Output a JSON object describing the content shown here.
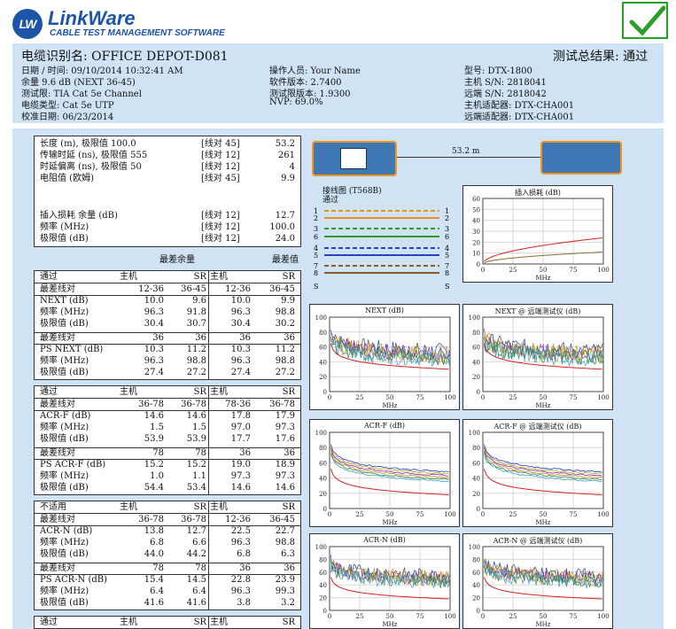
{
  "logo": {
    "mark": "LW",
    "name": "LinkWare",
    "subtitle": "CABLE TEST MANAGEMENT SOFTWARE"
  },
  "header": {
    "cable_id": "电缆识别名: OFFICE  DEPOT-D081",
    "overall_result": "测试总结果: 通过",
    "date": "日期 / 时间: 09/10/2014  10:32:41 AM",
    "margin": "余量 9.6 dB (NEXT 36-45)",
    "limit": "测试限: TIA Cat 5e Channel",
    "cable_type": "电缆类型: Cat 5e UTP",
    "cal_date": "校准日期:  06/23/2014",
    "operator": "操作人员: Your Name",
    "sw_version": "软件版本: 2.7400",
    "limit_version": "测试限版本: 1.9300",
    "nvp": "NVP: 69.0%",
    "model": "型号: DTX-1800",
    "main_sn": "主机 S/N: 2818041",
    "remote_sn": "远端 S/N: 2818042",
    "main_adapter": "主机适配器: DTX-CHA001",
    "remote_adapter": "远端适配器: DTX-CHA001"
  },
  "summary": {
    "rows": [
      {
        "label": "长度 (m), 极限值 100.0",
        "pair": "[线对 45]",
        "value": "53.2"
      },
      {
        "label": "传输时延 (ns), 极限值 555",
        "pair": "[线对 12]",
        "value": "261"
      },
      {
        "label": "时延偏离 (ns), 极限值 50",
        "pair": "[线对 12]",
        "value": "4"
      },
      {
        "label": "电阻值 (欧姆)",
        "pair": "[线对 45]",
        "value": "9.9"
      }
    ],
    "il_rows": [
      {
        "label": "插入损耗 余量 (dB)",
        "pair": "[线对 12]",
        "value": "12.7"
      },
      {
        "label": "频率 (MHz)",
        "pair": "[线对 12]",
        "value": "100.0"
      },
      {
        "label": "极限值 (dB)",
        "pair": "[线对 12]",
        "value": "24.0"
      }
    ],
    "worst_margin": "最差余量",
    "worst_value": "最差值"
  },
  "tables": [
    {
      "status": "通过",
      "cols": [
        "主机",
        "SR",
        "主机",
        "SR"
      ],
      "groups": [
        {
          "rows": [
            [
              "最差线对",
              "12-36",
              "36-45",
              "12-36",
              "36-45"
            ],
            [
              "NEXT (dB)",
              "10.0",
              "9.6",
              "10.0",
              "9.9"
            ],
            [
              "频率 (MHz)",
              "96.3",
              "91.8",
              "96.3",
              "98.8"
            ],
            [
              "极限值 (dB)",
              "30.4",
              "30.7",
              "30.4",
              "30.2"
            ]
          ]
        },
        {
          "rows": [
            [
              "最差线对",
              "36",
              "36",
              "36",
              "36"
            ],
            [
              "PS NEXT (dB)",
              "10.3",
              "11.2",
              "10.3",
              "11.2"
            ],
            [
              "频率 (MHz)",
              "96.3",
              "98.8",
              "96.3",
              "98.8"
            ],
            [
              "极限值 (dB)",
              "27.4",
              "27.2",
              "27.4",
              "27.2"
            ]
          ]
        }
      ]
    },
    {
      "status": "通过",
      "cols": [
        "主机",
        "SR",
        "主机",
        "SR"
      ],
      "groups": [
        {
          "rows": [
            [
              "最差线对",
              "36-78",
              "36-78",
              "78-36",
              "36-78"
            ],
            [
              "ACR-F (dB)",
              "14.6",
              "14.6",
              "17.8",
              "17.9"
            ],
            [
              "频率 (MHz)",
              "1.5",
              "1.5",
              "97.0",
              "97.3"
            ],
            [
              "极限值 (dB)",
              "53.9",
              "53.9",
              "17.7",
              "17.6"
            ]
          ]
        },
        {
          "rows": [
            [
              "最差线对",
              "78",
              "78",
              "36",
              "36"
            ],
            [
              "PS ACR-F (dB)",
              "15.2",
              "15.2",
              "19.0",
              "18.9"
            ],
            [
              "频率 (MHz)",
              "1.0",
              "1.1",
              "97.3",
              "97.3"
            ],
            [
              "极限值 (dB)",
              "54.4",
              "53.4",
              "14.6",
              "14.6"
            ]
          ]
        }
      ]
    },
    {
      "status": "不适用",
      "cols": [
        "主机",
        "SR",
        "主机",
        "SR"
      ],
      "groups": [
        {
          "rows": [
            [
              "最差线对",
              "36-78",
              "36-78",
              "12-36",
              "36-45"
            ],
            [
              "ACR-N (dB)",
              "13.8",
              "12.7",
              "22.5",
              "22.7"
            ],
            [
              "频率 (MHz)",
              "6.8",
              "6.6",
              "96.3",
              "98.8"
            ],
            [
              "极限值 (dB)",
              "44.0",
              "44.2",
              "6.8",
              "6.3"
            ]
          ]
        },
        {
          "rows": [
            [
              "最差线对",
              "78",
              "78",
              "36",
              "36"
            ],
            [
              "PS ACR-N (dB)",
              "15.4",
              "14.5",
              "22.8",
              "23.9"
            ],
            [
              "频率 (MHz)",
              "6.4",
              "6.4",
              "96.3",
              "99.3"
            ],
            [
              "极限值 (dB)",
              "41.6",
              "41.6",
              "3.8",
              "3.2"
            ]
          ]
        }
      ]
    },
    {
      "status": "通过",
      "cols": [
        "主机",
        "SR",
        "主机",
        "SR"
      ],
      "groups": []
    }
  ],
  "diagram": {
    "length_label": "53.2 m"
  },
  "wiremap": {
    "title": "接线图 (T568B)",
    "status": "通过",
    "pins": [
      "1",
      "2",
      "3",
      "6",
      "4",
      "5",
      "7",
      "8",
      "S"
    ],
    "colors": [
      "#f08c1e",
      "#f08c1e",
      "#2e9a2e",
      "#2e9a2e",
      "#2541c9",
      "#2541c9",
      "#8b5a2b",
      "#8b5a2b",
      "#777777"
    ]
  },
  "colors": {
    "panel_bg": "#cfe3f5",
    "brand": "#1b55a6",
    "pass_check": "#2aa02a"
  },
  "chart_data": [
    {
      "id": "il",
      "type": "line",
      "title": "插入损耗 (dB)",
      "xlabel": "MHz",
      "xlim": [
        0,
        100
      ],
      "ylim": [
        0,
        60
      ],
      "yticks": [
        0,
        10,
        20,
        30,
        40,
        50,
        60
      ],
      "xticks": [
        0,
        25,
        50,
        75,
        100
      ],
      "curves": [
        {
          "kind": "il",
          "color": "#d62020"
        },
        {
          "kind": "meas",
          "color": "#8a6a2a"
        }
      ]
    },
    {
      "id": "next",
      "type": "line",
      "title": "NEXT (dB)",
      "xlabel": "MHz",
      "xlim": [
        0,
        100
      ],
      "ylim": [
        0,
        100
      ],
      "yticks": [
        0,
        20,
        40,
        60,
        80,
        100
      ],
      "xticks": [
        0,
        25,
        50,
        75,
        100
      ],
      "curves": [
        {
          "kind": "noise"
        },
        {
          "kind": "limit",
          "color": "#d62020"
        }
      ]
    },
    {
      "id": "next_sr",
      "type": "line",
      "title": "NEXT @ 远端测试仪 (dB)",
      "xlabel": "MHz",
      "xlim": [
        0,
        100
      ],
      "ylim": [
        0,
        100
      ],
      "yticks": [
        0,
        20,
        40,
        60,
        80,
        100
      ],
      "xticks": [
        0,
        25,
        50,
        75,
        100
      ],
      "curves": [
        {
          "kind": "noise"
        },
        {
          "kind": "limit",
          "color": "#d62020"
        }
      ]
    },
    {
      "id": "acrf",
      "type": "line",
      "title": "ACR-F (dB)",
      "xlabel": "MHz",
      "xlim": [
        0,
        100
      ],
      "ylim": [
        0,
        100
      ],
      "yticks": [
        0,
        20,
        40,
        60,
        80,
        100
      ],
      "xticks": [
        0,
        25,
        50,
        75,
        100
      ],
      "curves": [
        {
          "kind": "smooth"
        },
        {
          "kind": "limit",
          "color": "#d62020"
        }
      ]
    },
    {
      "id": "acrf_sr",
      "type": "line",
      "title": "ACR-F @ 远端测试仪 (dB)",
      "xlabel": "MHz",
      "xlim": [
        0,
        100
      ],
      "ylim": [
        0,
        100
      ],
      "yticks": [
        0,
        20,
        40,
        60,
        80,
        100
      ],
      "xticks": [
        0,
        25,
        50,
        75,
        100
      ],
      "curves": [
        {
          "kind": "smooth"
        },
        {
          "kind": "limit",
          "color": "#d62020"
        }
      ]
    },
    {
      "id": "acrn",
      "type": "line",
      "title": "ACR-N (dB)",
      "xlabel": "MHz",
      "xlim": [
        0,
        100
      ],
      "ylim": [
        0,
        100
      ],
      "yticks": [
        0,
        20,
        40,
        60,
        80,
        100
      ],
      "xticks": [
        0,
        25,
        50,
        75,
        100
      ],
      "curves": [
        {
          "kind": "noise"
        },
        {
          "kind": "limit",
          "color": "#d62020"
        }
      ]
    },
    {
      "id": "acrn_sr",
      "type": "line",
      "title": "ACR-N @ 远端测试仪 (dB)",
      "xlabel": "MHz",
      "xlim": [
        0,
        100
      ],
      "ylim": [
        0,
        100
      ],
      "yticks": [
        0,
        20,
        40,
        60,
        80,
        100
      ],
      "xticks": [
        0,
        25,
        50,
        75,
        100
      ],
      "curves": [
        {
          "kind": "noise"
        },
        {
          "kind": "limit",
          "color": "#d62020"
        }
      ]
    }
  ]
}
